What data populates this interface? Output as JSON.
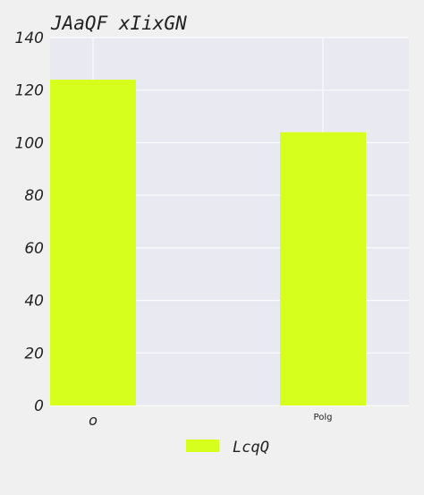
{
  "chart_data": {
    "type": "bar",
    "title": "JAaQF xIixGN",
    "categories": [
      "o",
      "Polg"
    ],
    "series": [
      {
        "name": "LcqQ",
        "values": [
          124,
          104
        ]
      }
    ],
    "ylim": [
      0,
      140
    ],
    "yticks": [
      0,
      20,
      40,
      60,
      80,
      100,
      120,
      140
    ],
    "grid": true,
    "legend_position": "bottom-center"
  },
  "colors": {
    "bar": "#d7ff1e",
    "plot_background": "#e9e9f2",
    "grid": "#ffffff",
    "page_background": "#f0f0f0"
  }
}
